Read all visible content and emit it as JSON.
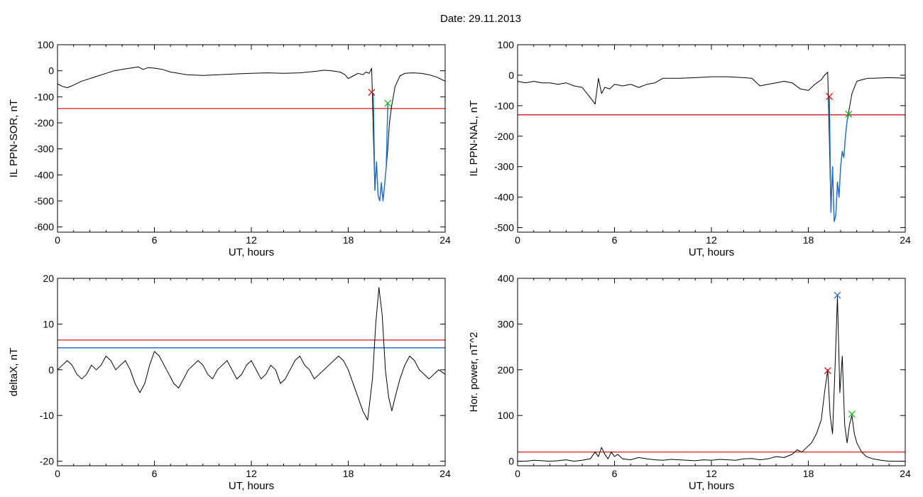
{
  "title": "Date:  29.11.2013",
  "colors": {
    "axis": "#000000",
    "trace": "#000000",
    "threshold_red": "#d00000",
    "threshold_blue": "#0050d0",
    "segment_blue": "#1a6fd1",
    "marker_red": "#e00000",
    "marker_green": "#00b000",
    "marker_blue": "#2060e0"
  },
  "chart_data": [
    {
      "id": "sor",
      "type": "line",
      "xlabel": "UT, hours",
      "ylabel": "IL PPN-SOR, nT",
      "xlim": [
        0,
        24
      ],
      "ylim": [
        -620,
        100
      ],
      "xticks": [
        0,
        6,
        12,
        18,
        24
      ],
      "yticks": [
        -600,
        -500,
        -400,
        -300,
        -200,
        -100,
        0,
        100
      ],
      "series": [
        {
          "role": "trace",
          "x": [
            0,
            0.3,
            0.6,
            1.0,
            1.5,
            2.0,
            2.5,
            3.0,
            3.5,
            4.0,
            4.5,
            5.0,
            5.3,
            5.6,
            6.0,
            6.5,
            7.0,
            7.5,
            8.0,
            9.0,
            10.0,
            11.0,
            12.0,
            13.0,
            14.0,
            15.0,
            15.5,
            16.0,
            16.5,
            17.0,
            17.5,
            17.8,
            18.0,
            18.3,
            18.6,
            18.9,
            19.1,
            19.3,
            19.45,
            19.55,
            19.65,
            19.75,
            19.85,
            19.95,
            20.05,
            20.15,
            20.25,
            20.35,
            20.45,
            20.55,
            20.7,
            20.9,
            21.2,
            21.5,
            22.0,
            22.5,
            23.0,
            23.5,
            24.0
          ],
          "y": [
            -50,
            -60,
            -65,
            -55,
            -40,
            -30,
            -20,
            -10,
            0,
            5,
            10,
            15,
            5,
            12,
            10,
            5,
            -5,
            -10,
            -15,
            -18,
            -15,
            -12,
            -10,
            -8,
            -10,
            -8,
            -5,
            -2,
            2,
            0,
            -5,
            -15,
            -30,
            -20,
            -10,
            -15,
            -5,
            -10,
            10,
            -240,
            -460,
            -350,
            -480,
            -500,
            -430,
            -500,
            -440,
            -370,
            -300,
            -200,
            -130,
            -60,
            -20,
            -10,
            -8,
            -10,
            -15,
            -25,
            -40
          ]
        },
        {
          "role": "segment",
          "x": [
            19.55,
            19.65,
            19.75,
            19.85,
            19.95,
            20.05,
            20.15,
            20.25,
            20.35,
            20.45
          ],
          "y": [
            -85,
            -460,
            -350,
            -480,
            -500,
            -430,
            -500,
            -440,
            -370,
            -125
          ]
        }
      ],
      "hlines": [
        {
          "y": -145,
          "color": "red"
        }
      ],
      "markers": [
        {
          "x": 19.45,
          "y": -83,
          "color": "red"
        },
        {
          "x": 20.45,
          "y": -125,
          "color": "green"
        }
      ]
    },
    {
      "id": "nal",
      "type": "line",
      "xlabel": "UT, hours",
      "ylabel": "IL PPN-NAL, nT",
      "xlim": [
        0,
        24
      ],
      "ylim": [
        -515,
        100
      ],
      "xticks": [
        0,
        6,
        12,
        18,
        24
      ],
      "yticks": [
        -500,
        -400,
        -300,
        -200,
        -100,
        0,
        100
      ],
      "series": [
        {
          "role": "trace",
          "x": [
            0,
            0.5,
            1.0,
            1.5,
            2.0,
            2.5,
            3.0,
            3.5,
            4.0,
            4.3,
            4.6,
            4.8,
            5.0,
            5.2,
            5.4,
            5.7,
            6.0,
            6.5,
            7.0,
            7.5,
            8.0,
            8.5,
            9.0,
            10.0,
            11.0,
            12.0,
            13.0,
            14.0,
            14.5,
            15.0,
            15.5,
            16.0,
            16.5,
            17.0,
            17.5,
            18.0,
            18.4,
            18.8,
            19.0,
            19.2,
            19.3,
            19.4,
            19.5,
            19.6,
            19.7,
            19.8,
            19.9,
            20.0,
            20.1,
            20.2,
            20.3,
            20.4,
            20.5,
            20.7,
            21.0,
            21.3,
            21.7,
            22.0,
            23.0,
            24.0
          ],
          "y": [
            -20,
            -25,
            -20,
            -25,
            -25,
            -30,
            -25,
            -35,
            -40,
            -60,
            -80,
            -95,
            -10,
            -60,
            -40,
            -45,
            -30,
            -35,
            -30,
            -40,
            -30,
            -25,
            -10,
            -10,
            -8,
            -5,
            -5,
            -8,
            -10,
            -35,
            -30,
            -25,
            -20,
            -25,
            -45,
            -50,
            -30,
            -15,
            0,
            10,
            -210,
            -450,
            -300,
            -480,
            -460,
            -350,
            -400,
            -300,
            -250,
            -270,
            -200,
            -150,
            -120,
            -60,
            -20,
            -15,
            -10,
            -10,
            -8,
            -10
          ]
        },
        {
          "role": "segment",
          "x": [
            19.3,
            19.4,
            19.5,
            19.6,
            19.7,
            19.8,
            19.9,
            20.0,
            20.1,
            20.2,
            20.3,
            20.4,
            20.5
          ],
          "y": [
            -70,
            -450,
            -300,
            -480,
            -460,
            -350,
            -400,
            -300,
            -250,
            -270,
            -200,
            -150,
            -128
          ]
        }
      ],
      "hlines": [
        {
          "y": -130,
          "color": "red"
        }
      ],
      "markers": [
        {
          "x": 19.3,
          "y": -70,
          "color": "red"
        },
        {
          "x": 20.5,
          "y": -128,
          "color": "green"
        }
      ]
    },
    {
      "id": "deltax",
      "type": "line",
      "xlabel": "UT, hours",
      "ylabel": "deltaX, nT",
      "xlim": [
        0,
        24
      ],
      "ylim": [
        -21,
        20
      ],
      "xticks": [
        0,
        6,
        12,
        18,
        24
      ],
      "yticks": [
        -20,
        -10,
        0,
        10,
        20
      ],
      "series": [
        {
          "role": "trace",
          "x": [
            0,
            0.3,
            0.6,
            0.9,
            1.2,
            1.5,
            1.8,
            2.1,
            2.4,
            2.7,
            3.0,
            3.3,
            3.6,
            3.9,
            4.2,
            4.5,
            4.8,
            5.1,
            5.4,
            5.7,
            6.0,
            6.3,
            6.6,
            6.9,
            7.2,
            7.5,
            7.8,
            8.1,
            8.4,
            8.7,
            9.0,
            9.3,
            9.6,
            9.9,
            10.2,
            10.5,
            10.8,
            11.1,
            11.4,
            11.7,
            12.0,
            12.3,
            12.6,
            12.9,
            13.2,
            13.5,
            13.8,
            14.1,
            14.4,
            14.7,
            15.0,
            15.3,
            15.6,
            15.9,
            16.2,
            16.5,
            16.8,
            17.1,
            17.4,
            17.7,
            18.0,
            18.3,
            18.6,
            18.9,
            19.2,
            19.5,
            19.7,
            19.9,
            20.1,
            20.3,
            20.5,
            20.7,
            20.9,
            21.2,
            21.5,
            21.8,
            22.1,
            22.4,
            22.7,
            23.0,
            23.3,
            23.6,
            24.0
          ],
          "y": [
            0,
            1,
            2,
            1,
            -1,
            -2,
            -1,
            1,
            0,
            1,
            3,
            2,
            0,
            1,
            2,
            0,
            -3,
            -5,
            -3,
            1,
            4,
            3,
            1,
            -1,
            -3,
            -4,
            -2,
            0,
            1,
            2,
            1,
            -1,
            -2,
            0,
            1,
            2,
            0,
            -2,
            -1,
            1,
            2,
            0,
            -2,
            -1,
            1,
            0,
            -3,
            -2,
            0,
            2,
            3,
            1,
            0,
            -2,
            -1,
            0,
            1,
            2,
            3,
            2,
            0,
            -3,
            -6,
            -9,
            -11,
            -2,
            10,
            18,
            12,
            0,
            -6,
            -9,
            -6,
            -2,
            1,
            3,
            2,
            0,
            -1,
            -2,
            -1,
            0,
            -1
          ]
        }
      ],
      "hlines": [
        {
          "y": 6.5,
          "color": "red"
        },
        {
          "y": 4.8,
          "color": "blue"
        }
      ],
      "markers": []
    },
    {
      "id": "power",
      "type": "line",
      "xlabel": "UT, hours",
      "ylabel": "Hor. power, nT^2",
      "xlim": [
        0,
        24
      ],
      "ylim": [
        -10,
        400
      ],
      "xticks": [
        0,
        6,
        12,
        18,
        24
      ],
      "yticks": [
        0,
        100,
        200,
        300,
        400
      ],
      "series": [
        {
          "role": "trace",
          "x": [
            0,
            0.5,
            1.0,
            1.5,
            2.0,
            2.5,
            3.0,
            3.5,
            4.0,
            4.5,
            4.8,
            5.0,
            5.2,
            5.4,
            5.6,
            5.8,
            6.0,
            6.2,
            6.5,
            7.0,
            7.5,
            8.0,
            8.5,
            9.0,
            9.5,
            10.0,
            10.5,
            11.0,
            11.5,
            12.0,
            12.5,
            13.0,
            13.5,
            14.0,
            14.5,
            15.0,
            15.5,
            16.0,
            16.5,
            17.0,
            17.3,
            17.6,
            17.9,
            18.2,
            18.5,
            18.8,
            19.0,
            19.2,
            19.35,
            19.5,
            19.65,
            19.8,
            19.95,
            20.1,
            20.25,
            20.4,
            20.55,
            20.7,
            20.85,
            21.0,
            21.3,
            21.6,
            22.0,
            22.5,
            23.0,
            24.0
          ],
          "y": [
            0,
            0,
            2,
            1,
            0,
            1,
            3,
            0,
            2,
            5,
            20,
            10,
            30,
            15,
            5,
            20,
            10,
            15,
            5,
            3,
            8,
            5,
            3,
            2,
            4,
            3,
            2,
            1,
            3,
            2,
            4,
            3,
            2,
            5,
            6,
            3,
            5,
            10,
            8,
            15,
            25,
            20,
            30,
            40,
            60,
            90,
            150,
            200,
            100,
            60,
            200,
            360,
            150,
            230,
            80,
            40,
            80,
            100,
            60,
            40,
            20,
            10,
            5,
            2,
            0,
            0
          ]
        }
      ],
      "hlines": [
        {
          "y": 20,
          "color": "red"
        }
      ],
      "markers": [
        {
          "x": 19.2,
          "y": 198,
          "color": "red"
        },
        {
          "x": 19.8,
          "y": 363,
          "color": "blue"
        },
        {
          "x": 20.7,
          "y": 103,
          "color": "green"
        }
      ]
    }
  ]
}
